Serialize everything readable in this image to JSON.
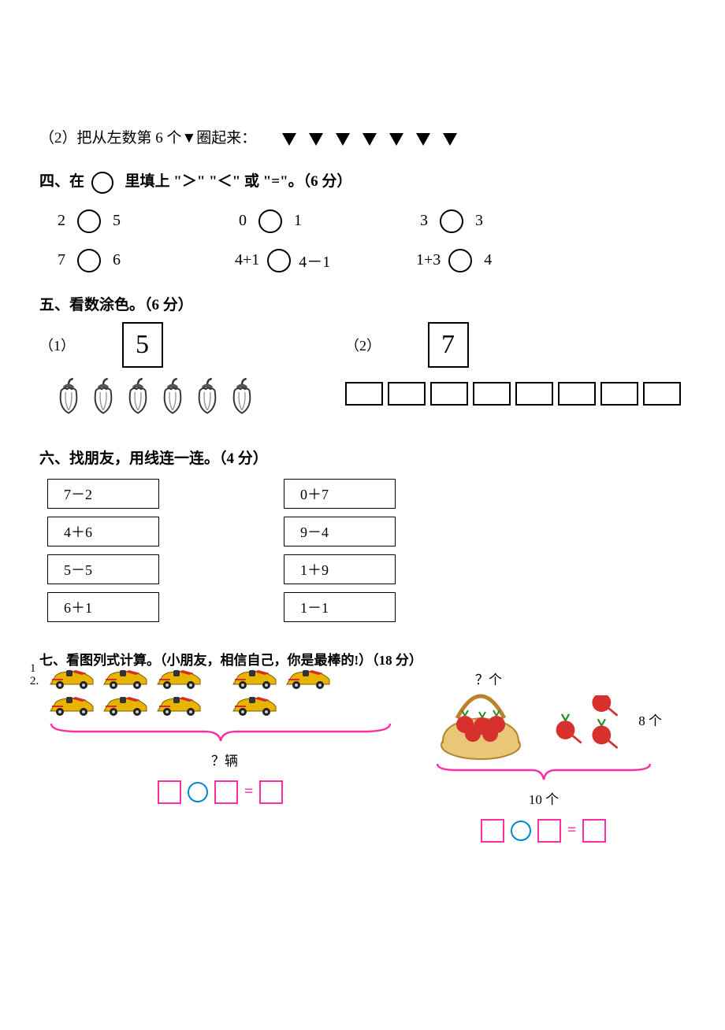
{
  "q2": {
    "text": "（2）把从左数第 6 个▼圈起来：",
    "triangle_count": 7
  },
  "q4": {
    "title": "四、在",
    "title_mid": "里填上 \"＞\" \"＜\" 或 \"=\"。（6 分）",
    "items": [
      [
        {
          "l": "2",
          "r": "5"
        },
        {
          "l": "0",
          "r": "1"
        },
        {
          "l": "3",
          "r": "3"
        }
      ],
      [
        {
          "l": "7",
          "r": "6"
        },
        {
          "l": "4+1",
          "r": "4－1"
        },
        {
          "l": "1+3",
          "r": "4"
        }
      ]
    ]
  },
  "q5": {
    "title": "五、看数涂色。（6 分）",
    "parts": [
      {
        "label": "（1）",
        "num": "5",
        "pepper_count": 6
      },
      {
        "label": "（2）",
        "num": "7",
        "rect_count": 8
      }
    ]
  },
  "q6": {
    "title": "六、找朋友，用线连一连。（4 分）",
    "left": [
      "7－2",
      "4＋6",
      "5－5",
      "6＋1"
    ],
    "right": [
      "0＋7",
      "9－4",
      "1＋9",
      "1－1"
    ]
  },
  "q7": {
    "title": "七、看图列式计算。（小朋友，相信自己，你是最棒的!）（18 分）",
    "left": {
      "idx1": "1",
      "idx2": "2.",
      "group_a_rows": [
        3,
        3
      ],
      "group_b_rows": [
        2,
        1
      ],
      "qlabel": "？辆"
    },
    "right": {
      "top_q": "？个",
      "eight": "8 个",
      "ten": "10 个"
    },
    "eq_sign": "="
  },
  "colors": {
    "pink": "#ff2ea6",
    "blue": "#0088cc",
    "car_body": "#e8b400",
    "car_accent": "#d3302a",
    "basket_rim": "#d59b3a",
    "basket_body": "#e9c779",
    "radish": "#d7302d",
    "radish_leaf": "#2e8b2e"
  }
}
